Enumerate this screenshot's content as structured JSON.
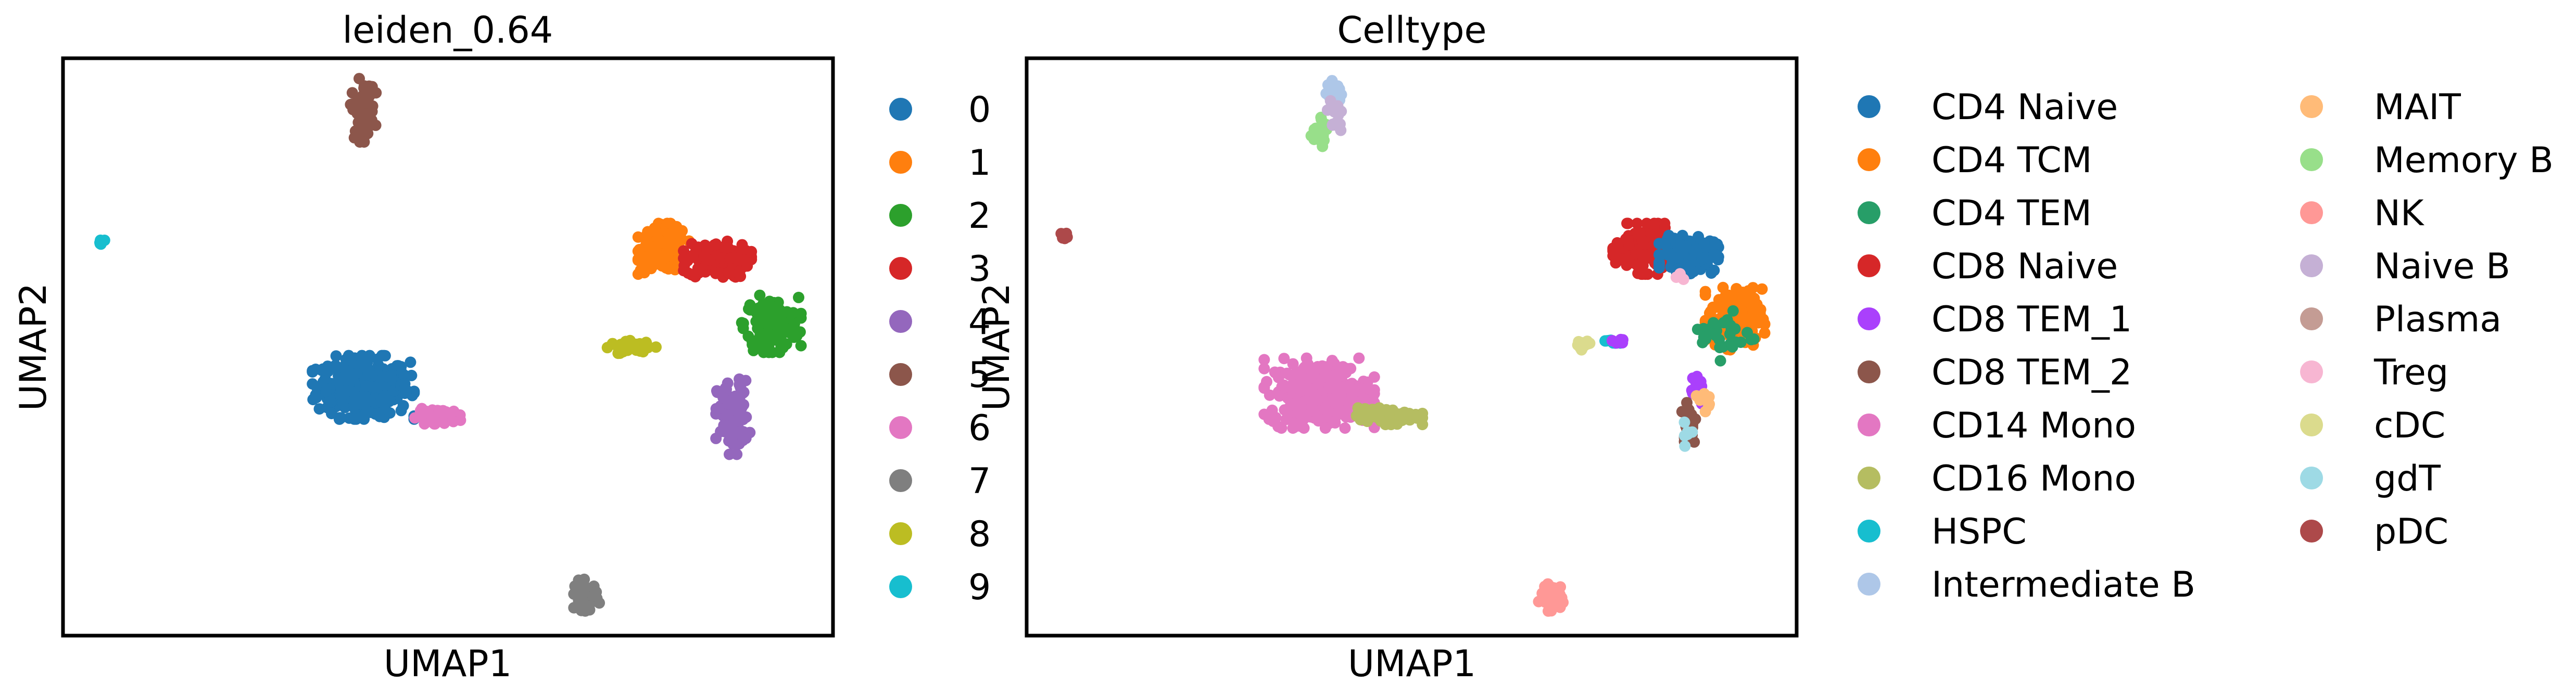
{
  "chart_data": [
    {
      "type": "scatter",
      "title": "leiden_0.64",
      "xlabel": "UMAP1",
      "ylabel": "UMAP2",
      "ticks": "none",
      "grid": false,
      "legend_placement": "right-outside",
      "legend": [
        {
          "label": "0",
          "color": "#1f77b4"
        },
        {
          "label": "1",
          "color": "#ff7f0e"
        },
        {
          "label": "2",
          "color": "#2ca02c"
        },
        {
          "label": "3",
          "color": "#d62728"
        },
        {
          "label": "4",
          "color": "#9467bd"
        },
        {
          "label": "5",
          "color": "#8c564b"
        },
        {
          "label": "6",
          "color": "#e377c2"
        },
        {
          "label": "7",
          "color": "#7f7f7f"
        },
        {
          "label": "8",
          "color": "#bcbd22"
        },
        {
          "label": "9",
          "color": "#17becf"
        }
      ],
      "clusters": [
        {
          "label": "0",
          "cx": 0.39,
          "cy": 0.43,
          "rx": 0.06,
          "ry": 0.05,
          "n": 320
        },
        {
          "label": "1",
          "cx": 0.78,
          "cy": 0.67,
          "rx": 0.03,
          "ry": 0.04,
          "n": 180
        },
        {
          "label": "2",
          "cx": 0.92,
          "cy": 0.54,
          "rx": 0.035,
          "ry": 0.045,
          "n": 170
        },
        {
          "label": "3",
          "cx": 0.85,
          "cy": 0.65,
          "rx": 0.04,
          "ry": 0.03,
          "n": 150
        },
        {
          "label": "4",
          "cx": 0.87,
          "cy": 0.38,
          "rx": 0.02,
          "ry": 0.06,
          "n": 110
        },
        {
          "label": "5",
          "cx": 0.39,
          "cy": 0.91,
          "rx": 0.015,
          "ry": 0.05,
          "n": 60
        },
        {
          "label": "6",
          "cx": 0.49,
          "cy": 0.38,
          "rx": 0.03,
          "ry": 0.012,
          "n": 70
        },
        {
          "label": "7",
          "cx": 0.68,
          "cy": 0.07,
          "rx": 0.015,
          "ry": 0.025,
          "n": 50
        },
        {
          "label": "8",
          "cx": 0.74,
          "cy": 0.5,
          "rx": 0.03,
          "ry": 0.01,
          "n": 40
        },
        {
          "label": "9",
          "cx": 0.05,
          "cy": 0.68,
          "rx": 0.005,
          "ry": 0.007,
          "n": 8
        }
      ]
    },
    {
      "type": "scatter",
      "title": "Celltype",
      "xlabel": "UMAP1",
      "ylabel": "UMAP2",
      "ticks": "none",
      "grid": false,
      "legend_placement": "right-outside",
      "legend_columns": 2,
      "legend": [
        {
          "label": "CD4 Naive",
          "color": "#1f77b4"
        },
        {
          "label": "CD4 TCM",
          "color": "#ff7f0e"
        },
        {
          "label": "CD4 TEM",
          "color": "#279e68"
        },
        {
          "label": "CD8 Naive",
          "color": "#d62728"
        },
        {
          "label": "CD8 TEM_1",
          "color": "#aa40fc"
        },
        {
          "label": "CD8 TEM_2",
          "color": "#8c564b"
        },
        {
          "label": "CD14 Mono",
          "color": "#e377c2"
        },
        {
          "label": "CD16 Mono",
          "color": "#b5bd61"
        },
        {
          "label": "HSPC",
          "color": "#17becf"
        },
        {
          "label": "Intermediate B",
          "color": "#aec7e8"
        },
        {
          "label": "MAIT",
          "color": "#ffbb78"
        },
        {
          "label": "Memory B",
          "color": "#98df8a"
        },
        {
          "label": "NK",
          "color": "#ff9896"
        },
        {
          "label": "Naive B",
          "color": "#c5b0d5"
        },
        {
          "label": "Plasma",
          "color": "#c49c94"
        },
        {
          "label": "Treg",
          "color": "#f7b6d2"
        },
        {
          "label": "cDC",
          "color": "#dbdb8d"
        },
        {
          "label": "gdT",
          "color": "#9edae5"
        },
        {
          "label": "pDC",
          "color": "#ad494a"
        }
      ],
      "clusters": [
        {
          "label": "CD8 Naive",
          "cx": 0.8,
          "cy": 0.67,
          "rx": 0.035,
          "ry": 0.04,
          "n": 200
        },
        {
          "label": "CD4 Naive",
          "cx": 0.86,
          "cy": 0.66,
          "rx": 0.035,
          "ry": 0.03,
          "n": 160
        },
        {
          "label": "CD4 TCM",
          "cx": 0.92,
          "cy": 0.55,
          "rx": 0.035,
          "ry": 0.05,
          "n": 150
        },
        {
          "label": "CD4 TEM",
          "cx": 0.91,
          "cy": 0.52,
          "rx": 0.035,
          "ry": 0.04,
          "n": 30
        },
        {
          "label": "CD8 TEM_1",
          "cx": 0.87,
          "cy": 0.43,
          "rx": 0.012,
          "ry": 0.03,
          "n": 25
        },
        {
          "label": "CD8 TEM_2",
          "cx": 0.86,
          "cy": 0.37,
          "rx": 0.01,
          "ry": 0.04,
          "n": 25
        },
        {
          "label": "MAIT",
          "cx": 0.88,
          "cy": 0.41,
          "rx": 0.01,
          "ry": 0.02,
          "n": 10
        },
        {
          "label": "gdT",
          "cx": 0.86,
          "cy": 0.35,
          "rx": 0.006,
          "ry": 0.02,
          "n": 6
        },
        {
          "label": "Treg",
          "cx": 0.85,
          "cy": 0.62,
          "rx": 0.01,
          "ry": 0.01,
          "n": 4
        },
        {
          "label": "CD14 Mono",
          "cx": 0.38,
          "cy": 0.42,
          "rx": 0.065,
          "ry": 0.055,
          "n": 330
        },
        {
          "label": "CD16 Mono",
          "cx": 0.47,
          "cy": 0.38,
          "rx": 0.04,
          "ry": 0.013,
          "n": 90
        },
        {
          "label": "NK",
          "cx": 0.68,
          "cy": 0.07,
          "rx": 0.015,
          "ry": 0.025,
          "n": 50
        },
        {
          "label": "Intermediate B",
          "cx": 0.4,
          "cy": 0.94,
          "rx": 0.01,
          "ry": 0.02,
          "n": 25
        },
        {
          "label": "Memory B",
          "cx": 0.38,
          "cy": 0.87,
          "rx": 0.012,
          "ry": 0.025,
          "n": 25
        },
        {
          "label": "Naive B",
          "cx": 0.4,
          "cy": 0.9,
          "rx": 0.01,
          "ry": 0.03,
          "n": 15
        },
        {
          "label": "cDC",
          "cx": 0.72,
          "cy": 0.5,
          "rx": 0.015,
          "ry": 0.01,
          "n": 15
        },
        {
          "label": "HSPC",
          "cx": 0.76,
          "cy": 0.51,
          "rx": 0.01,
          "ry": 0.008,
          "n": 8
        },
        {
          "label": "CD8 TEM_1",
          "cx": 0.77,
          "cy": 0.51,
          "rx": 0.01,
          "ry": 0.006,
          "n": 6
        },
        {
          "label": "pDC",
          "cx": 0.05,
          "cy": 0.69,
          "rx": 0.005,
          "ry": 0.006,
          "n": 6
        }
      ]
    }
  ]
}
